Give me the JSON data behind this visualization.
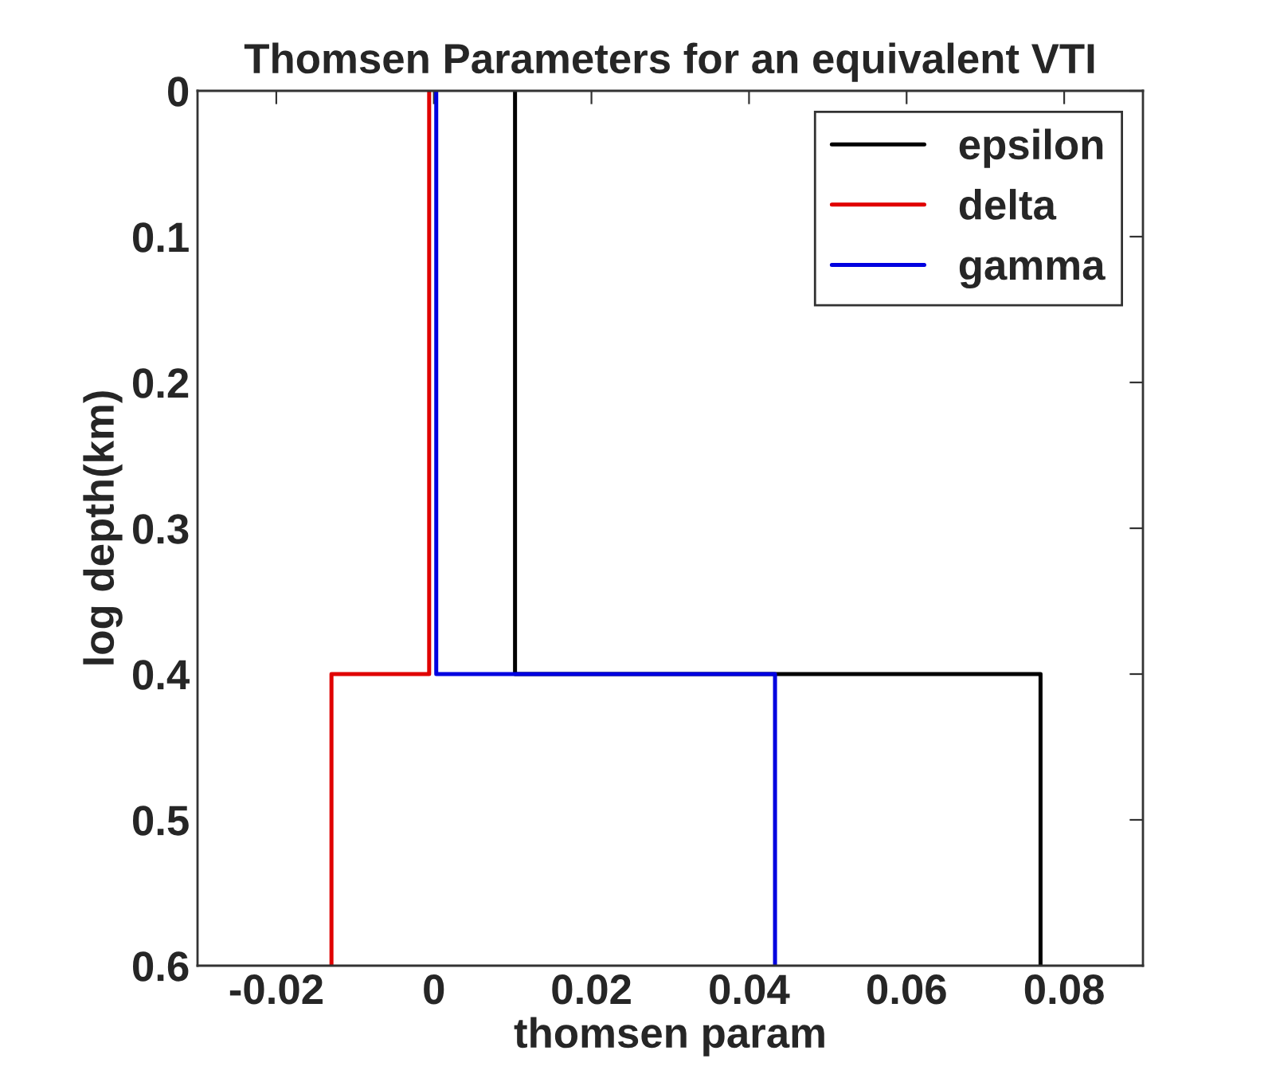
{
  "chart_data": {
    "type": "line",
    "title": "Thomsen Parameters for an equivalent VTI",
    "xlabel": "thomsen param",
    "ylabel": "log depth(km)",
    "series": [
      {
        "name": "epsilon",
        "color": "#000000",
        "x": [
          0.0103,
          0.0103,
          0.077,
          0.077
        ],
        "values": [
          0,
          0.4,
          0.4,
          0.6
        ]
      },
      {
        "name": "delta",
        "color": "#e00000",
        "x": [
          -0.0006,
          -0.0006,
          -0.013,
          -0.013
        ],
        "values": [
          0,
          0.4,
          0.4,
          0.6
        ]
      },
      {
        "name": "gamma",
        "color": "#0000e0",
        "x": [
          0.0003,
          0.0003,
          0.0433,
          0.0433
        ],
        "values": [
          0,
          0.4,
          0.4,
          0.6
        ]
      }
    ],
    "xlim": [
      -0.03,
      0.09
    ],
    "xticks": [
      -0.02,
      0,
      0.02,
      0.04,
      0.06,
      0.08
    ],
    "ylim": [
      0.6,
      0
    ],
    "yticks": [
      0,
      0.1,
      0.2,
      0.3,
      0.4,
      0.5,
      0.6
    ],
    "grid": false,
    "legend": "top right",
    "line_style": "solid",
    "marker": "none"
  }
}
